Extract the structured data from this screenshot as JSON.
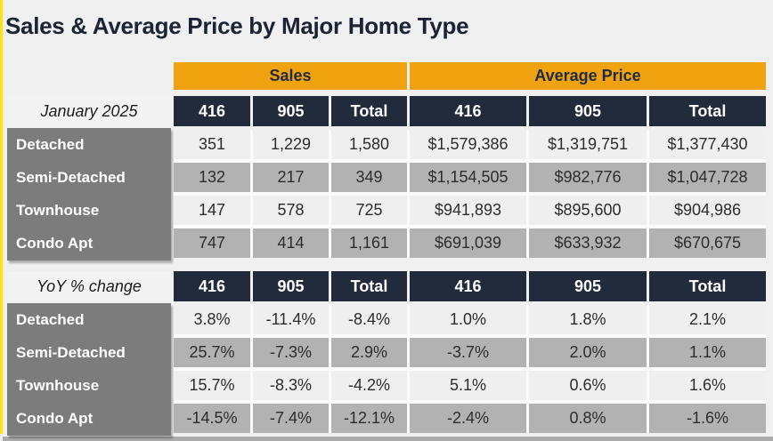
{
  "colors": {
    "accent_orange": "#f0a30e",
    "header_navy": "#212b3c",
    "row_header_gray": "#7c7c7c",
    "zebra_gray": "#b2b2b2",
    "zebra_light": "#efefef",
    "edge_yellow": "#ffe10b",
    "title_navy": "#1b2436"
  },
  "chart_data": {
    "type": "table",
    "title": "Sales & Average Price by Major Home Type",
    "group_headers": [
      "Sales",
      "Average Price"
    ],
    "sub_headers": [
      "416",
      "905",
      "Total"
    ],
    "sections": [
      {
        "label": "January 2025",
        "rows": [
          {
            "name": "Detached",
            "cells": [
              "351",
              "1,229",
              "1,580",
              "$1,579,386",
              "$1,319,751",
              "$1,377,430"
            ]
          },
          {
            "name": "Semi-Detached",
            "cells": [
              "132",
              "217",
              "349",
              "$1,154,505",
              "$982,776",
              "$1,047,728"
            ]
          },
          {
            "name": "Townhouse",
            "cells": [
              "147",
              "578",
              "725",
              "$941,893",
              "$895,600",
              "$904,986"
            ]
          },
          {
            "name": "Condo Apt",
            "cells": [
              "747",
              "414",
              "1,161",
              "$691,039",
              "$633,932",
              "$670,675"
            ]
          }
        ]
      },
      {
        "label": "YoY % change",
        "rows": [
          {
            "name": "Detached",
            "cells": [
              "3.8%",
              "-11.4%",
              "-8.4%",
              "1.0%",
              "1.8%",
              "2.1%"
            ]
          },
          {
            "name": "Semi-Detached",
            "cells": [
              "25.7%",
              "-7.3%",
              "2.9%",
              "-3.7%",
              "2.0%",
              "1.1%"
            ]
          },
          {
            "name": "Townhouse",
            "cells": [
              "15.7%",
              "-8.3%",
              "-4.2%",
              "5.1%",
              "0.6%",
              "1.6%"
            ]
          },
          {
            "name": "Condo Apt",
            "cells": [
              "-14.5%",
              "-7.4%",
              "-12.1%",
              "-2.4%",
              "0.8%",
              "-1.6%"
            ]
          }
        ]
      }
    ]
  }
}
